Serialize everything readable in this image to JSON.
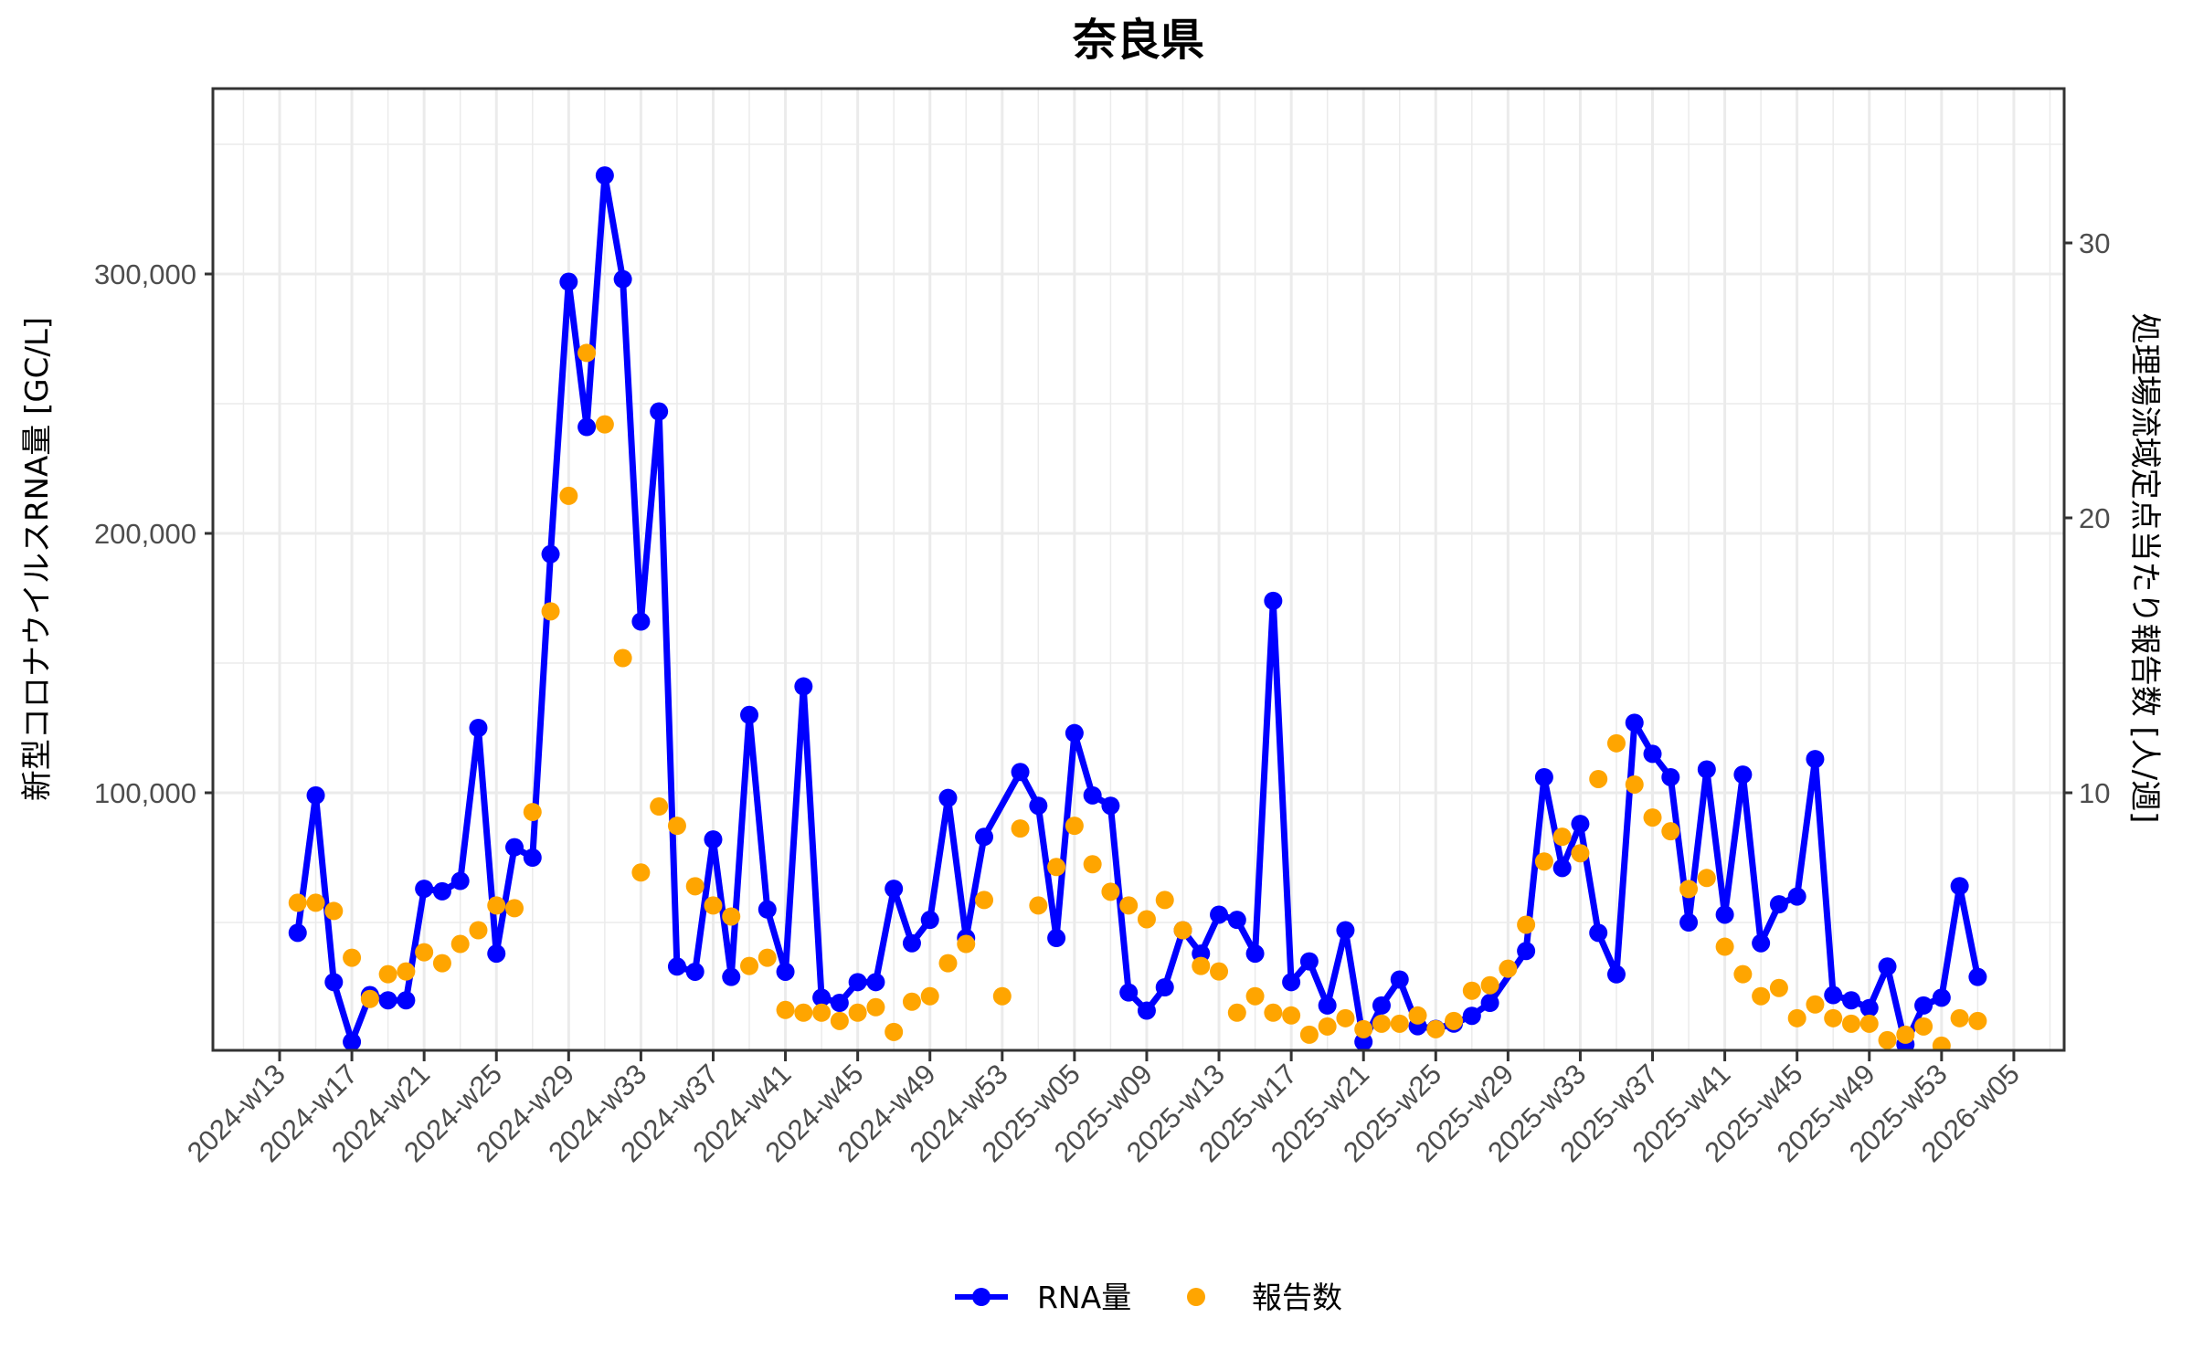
{
  "chart_data": {
    "type": "line",
    "title": "奈良県",
    "xlabel": "",
    "ylabel": "新型コロナウイルスRNA量 [GC/L]",
    "y2label": "処理場流域定点当たり報告数 [人/週]",
    "ylim": [
      0,
      370000
    ],
    "y2lim": [
      0,
      35
    ],
    "grid": true,
    "legend_position": "bottom",
    "x_ticks": [
      "2024-w13",
      "2024-w17",
      "2024-w21",
      "2024-w25",
      "2024-w29",
      "2024-w33",
      "2024-w37",
      "2024-w41",
      "2024-w45",
      "2024-w49",
      "2024-w53",
      "2025-w05",
      "2025-w09",
      "2025-w13",
      "2025-w17",
      "2025-w21",
      "2025-w25",
      "2025-w29",
      "2025-w33",
      "2025-w37",
      "2025-w41",
      "2025-w45",
      "2025-w49",
      "2025-w53",
      "2026-w05"
    ],
    "y_ticks": [
      100000,
      200000,
      300000
    ],
    "y_tick_labels": [
      "100,000",
      "200,000",
      "300,000"
    ],
    "y2_ticks": [
      10,
      20,
      30
    ],
    "y2_tick_labels": [
      "10",
      "20",
      "30"
    ],
    "series": [
      {
        "name": "RNA量",
        "axis": "left",
        "style": "line+point",
        "color": "#0000ff",
        "points": [
          [
            14,
            46000
          ],
          [
            15,
            99000
          ],
          [
            16,
            27000
          ],
          [
            17,
            4000
          ],
          [
            18,
            22000
          ],
          [
            19,
            20000
          ],
          [
            20,
            20000
          ],
          [
            21,
            63000
          ],
          [
            22,
            62000
          ],
          [
            23,
            66000
          ],
          [
            24,
            125000
          ],
          [
            25,
            38000
          ],
          [
            26,
            79000
          ],
          [
            27,
            75000
          ],
          [
            28,
            192000
          ],
          [
            29,
            297000
          ],
          [
            30,
            241000
          ],
          [
            31,
            338000
          ],
          [
            32,
            298000
          ],
          [
            33,
            166000
          ],
          [
            34,
            247000
          ],
          [
            35,
            33000
          ],
          [
            36,
            31000
          ],
          [
            37,
            82000
          ],
          [
            38,
            29000
          ],
          [
            39,
            130000
          ],
          [
            40,
            55000
          ],
          [
            41,
            31000
          ],
          [
            42,
            141000
          ],
          [
            43,
            21000
          ],
          [
            44,
            19000
          ],
          [
            45,
            27000
          ],
          [
            46,
            27000
          ],
          [
            47,
            63000
          ],
          [
            48,
            42000
          ],
          [
            49,
            51000
          ],
          [
            50,
            98000
          ],
          [
            51,
            44000
          ],
          [
            52,
            83000
          ],
          [
            54,
            108000
          ],
          [
            55,
            95000
          ],
          [
            56,
            44000
          ],
          [
            57,
            123000
          ],
          [
            58,
            99000
          ],
          [
            59,
            95000
          ],
          [
            60,
            23000
          ],
          [
            61,
            16000
          ],
          [
            62,
            25000
          ],
          [
            63,
            47000
          ],
          [
            64,
            38000
          ],
          [
            65,
            53000
          ],
          [
            66,
            51000
          ],
          [
            67,
            38000
          ],
          [
            68,
            174000
          ],
          [
            69,
            27000
          ],
          [
            70,
            35000
          ],
          [
            71,
            18000
          ],
          [
            72,
            47000
          ],
          [
            73,
            4000
          ],
          [
            74,
            18000
          ],
          [
            75,
            28000
          ],
          [
            76,
            10000
          ],
          [
            77,
            9000
          ],
          [
            78,
            11000
          ],
          [
            79,
            14000
          ],
          [
            80,
            19000
          ],
          [
            82,
            39000
          ],
          [
            83,
            106000
          ],
          [
            84,
            71000
          ],
          [
            85,
            88000
          ],
          [
            86,
            46000
          ],
          [
            87,
            30000
          ],
          [
            88,
            127000
          ],
          [
            89,
            115000
          ],
          [
            90,
            106000
          ],
          [
            91,
            50000
          ],
          [
            92,
            109000
          ],
          [
            93,
            53000
          ],
          [
            94,
            107000
          ],
          [
            95,
            42000
          ],
          [
            96,
            57000
          ],
          [
            97,
            60000
          ],
          [
            98,
            113000
          ],
          [
            99,
            22000
          ],
          [
            100,
            20000
          ],
          [
            101,
            17000
          ],
          [
            102,
            33000
          ],
          [
            103,
            3000
          ],
          [
            104,
            18000
          ],
          [
            105,
            21000
          ],
          [
            106,
            64000
          ],
          [
            107,
            29000
          ]
        ]
      },
      {
        "name": "報告数",
        "axis": "right",
        "style": "point",
        "color": "#ffa500",
        "points": [
          [
            14,
            6.0
          ],
          [
            15,
            6.0
          ],
          [
            16,
            5.7
          ],
          [
            17,
            4.0
          ],
          [
            18,
            2.5
          ],
          [
            19,
            3.4
          ],
          [
            20,
            3.5
          ],
          [
            21,
            4.2
          ],
          [
            22,
            3.8
          ],
          [
            23,
            4.5
          ],
          [
            24,
            5.0
          ],
          [
            25,
            5.9
          ],
          [
            26,
            5.8
          ],
          [
            27,
            9.3
          ],
          [
            28,
            16.6
          ],
          [
            29,
            20.8
          ],
          [
            30,
            26.0
          ],
          [
            31,
            23.4
          ],
          [
            32,
            14.9
          ],
          [
            33,
            7.1
          ],
          [
            34,
            9.5
          ],
          [
            35,
            8.8
          ],
          [
            36,
            6.6
          ],
          [
            37,
            5.9
          ],
          [
            38,
            5.5
          ],
          [
            39,
            3.7
          ],
          [
            40,
            4.0
          ],
          [
            41,
            2.1
          ],
          [
            42,
            2.0
          ],
          [
            43,
            2.0
          ],
          [
            44,
            1.7
          ],
          [
            45,
            2.0
          ],
          [
            46,
            2.2
          ],
          [
            47,
            1.3
          ],
          [
            48,
            2.4
          ],
          [
            49,
            2.6
          ],
          [
            50,
            3.8
          ],
          [
            51,
            4.5
          ],
          [
            52,
            6.1
          ],
          [
            53,
            2.6
          ],
          [
            54,
            8.7
          ],
          [
            55,
            5.9
          ],
          [
            56,
            7.3
          ],
          [
            57,
            8.8
          ],
          [
            58,
            7.4
          ],
          [
            59,
            6.4
          ],
          [
            60,
            5.9
          ],
          [
            61,
            5.4
          ],
          [
            62,
            6.1
          ],
          [
            63,
            5.0
          ],
          [
            64,
            3.7
          ],
          [
            65,
            3.5
          ],
          [
            66,
            2.0
          ],
          [
            67,
            2.6
          ],
          [
            68,
            2.0
          ],
          [
            69,
            1.9
          ],
          [
            70,
            1.2
          ],
          [
            71,
            1.5
          ],
          [
            72,
            1.8
          ],
          [
            73,
            1.4
          ],
          [
            74,
            1.6
          ],
          [
            75,
            1.6
          ],
          [
            76,
            1.9
          ],
          [
            77,
            1.4
          ],
          [
            78,
            1.7
          ],
          [
            79,
            2.8
          ],
          [
            80,
            3.0
          ],
          [
            81,
            3.6
          ],
          [
            82,
            5.2
          ],
          [
            83,
            7.5
          ],
          [
            84,
            8.4
          ],
          [
            85,
            7.8
          ],
          [
            86,
            10.5
          ],
          [
            87,
            11.8
          ],
          [
            88,
            10.3
          ],
          [
            89,
            9.1
          ],
          [
            90,
            8.6
          ],
          [
            91,
            6.5
          ],
          [
            92,
            6.9
          ],
          [
            93,
            4.4
          ],
          [
            94,
            3.4
          ],
          [
            95,
            2.6
          ],
          [
            96,
            2.9
          ],
          [
            97,
            1.8
          ],
          [
            98,
            2.3
          ],
          [
            99,
            1.8
          ],
          [
            100,
            1.6
          ],
          [
            101,
            1.6
          ],
          [
            102,
            1.0
          ],
          [
            103,
            1.2
          ],
          [
            104,
            1.5
          ],
          [
            105,
            0.8
          ],
          [
            106,
            1.8
          ],
          [
            107,
            1.7
          ]
        ]
      }
    ],
    "x_index_note": "point x is week index: 13..53 = 2024-wNN, 54..105 = 2025-w(N-52), 106+ = 2026-w(N-105)"
  },
  "legend": {
    "items": [
      {
        "label": "RNA量",
        "color": "#0000ff"
      },
      {
        "label": "報告数",
        "color": "#ffa500"
      }
    ]
  },
  "colors": {
    "rna": "#0000ff",
    "reports": "#ffa500",
    "grid": "#ebebeb",
    "panel_border": "#333333",
    "tick_text": "#4d4d4d"
  }
}
